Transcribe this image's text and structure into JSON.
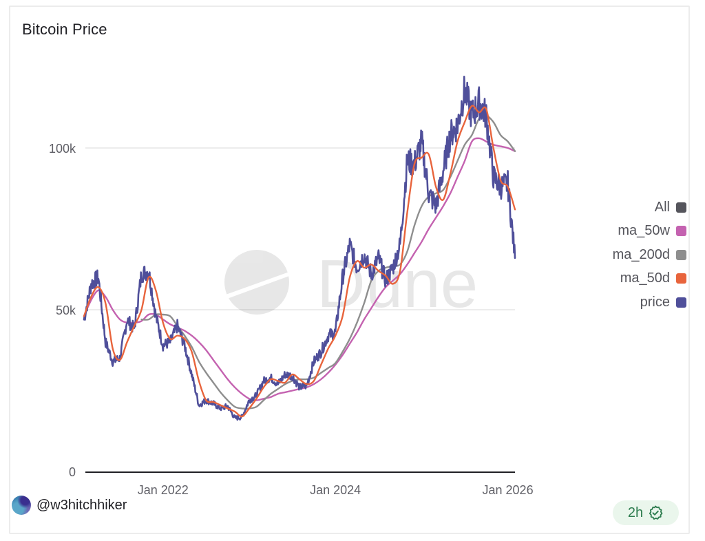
{
  "card": {
    "title": "Bitcoin Price"
  },
  "legend": {
    "items": [
      {
        "label": "All",
        "color": "#55555c"
      },
      {
        "label": "ma_50w",
        "color": "#c462b0"
      },
      {
        "label": "ma_200d",
        "color": "#8e8e8e"
      },
      {
        "label": "ma_50d",
        "color": "#e8643c"
      },
      {
        "label": "price",
        "color": "#4f4f9a"
      }
    ]
  },
  "watermark": {
    "text": "Dune",
    "icon": "dune-logo-icon"
  },
  "footer": {
    "author": "@w3hitchhiker",
    "refresh_badge": "2h",
    "badge_icon": "verified-check-icon",
    "badge_color": "#2e7d4f"
  },
  "chart_data": {
    "type": "line",
    "title": "Bitcoin Price",
    "xlabel": "",
    "ylabel": "",
    "x_ticks": [
      "Jan 2022",
      "Jan 2024",
      "Jan 2026"
    ],
    "y_ticks": [
      "0",
      "50k",
      "100k"
    ],
    "y_tick_values": [
      0,
      50000,
      100000
    ],
    "ylim": [
      0,
      128000
    ],
    "xlim": [
      "2021-02",
      "2026-02"
    ],
    "grid": true,
    "legend_position": "right",
    "x": [
      "2021-02",
      "2021-03",
      "2021-04",
      "2021-05",
      "2021-06",
      "2021-07",
      "2021-08",
      "2021-09",
      "2021-10",
      "2021-11",
      "2021-12",
      "2022-01",
      "2022-02",
      "2022-03",
      "2022-04",
      "2022-05",
      "2022-06",
      "2022-07",
      "2022-08",
      "2022-09",
      "2022-10",
      "2022-11",
      "2022-12",
      "2023-01",
      "2023-02",
      "2023-03",
      "2023-04",
      "2023-05",
      "2023-06",
      "2023-07",
      "2023-08",
      "2023-09",
      "2023-10",
      "2023-11",
      "2023-12",
      "2024-01",
      "2024-02",
      "2024-03",
      "2024-04",
      "2024-05",
      "2024-06",
      "2024-07",
      "2024-08",
      "2024-09",
      "2024-10",
      "2024-11",
      "2024-12",
      "2025-01",
      "2025-02",
      "2025-03",
      "2025-04",
      "2025-05",
      "2025-06",
      "2025-07",
      "2025-08",
      "2025-09",
      "2025-10",
      "2025-11",
      "2025-12",
      "2026-01",
      "2026-02"
    ],
    "series": [
      {
        "name": "price",
        "color": "#4f4f9a",
        "values": [
          47000,
          58000,
          60000,
          40000,
          34000,
          35000,
          47000,
          44000,
          61000,
          62000,
          48000,
          39000,
          40000,
          45000,
          39000,
          30000,
          20500,
          22000,
          21000,
          19500,
          20200,
          16500,
          16800,
          22000,
          23500,
          28000,
          29000,
          27000,
          30000,
          29500,
          26000,
          26500,
          34000,
          37000,
          42000,
          43000,
          60000,
          70000,
          63000,
          67000,
          61000,
          66000,
          59000,
          63000,
          70000,
          96000,
          95000,
          102000,
          86000,
          82000,
          93000,
          104000,
          107000,
          118000,
          110000,
          114000,
          110000,
          91000,
          88000,
          89000,
          66000
        ]
      },
      {
        "name": "ma_50d",
        "color": "#e8643c",
        "values": [
          48000,
          54000,
          57000,
          52000,
          38000,
          34500,
          40000,
          45000,
          50000,
          60000,
          56000,
          46000,
          41000,
          42000,
          41000,
          37000,
          28000,
          22000,
          21500,
          20500,
          19500,
          18500,
          17000,
          19500,
          22500,
          26000,
          28500,
          28000,
          27500,
          30000,
          28500,
          27000,
          28000,
          33000,
          38000,
          42000,
          48000,
          60000,
          65000,
          63000,
          64000,
          62000,
          60500,
          58000,
          62000,
          80000,
          95000,
          97000,
          98000,
          88000,
          84000,
          92000,
          102000,
          108000,
          113000,
          111000,
          112000,
          100000,
          90000,
          88000,
          81000
        ]
      },
      {
        "name": "ma_200d",
        "color": "#8e8e8e",
        "values": [
          null,
          null,
          null,
          null,
          null,
          null,
          null,
          null,
          47000,
          47000,
          48500,
          48500,
          48000,
          45000,
          42000,
          38500,
          34000,
          30500,
          27500,
          24500,
          22000,
          20000,
          19500,
          19500,
          20000,
          22000,
          24000,
          25500,
          27000,
          28000,
          28500,
          28500,
          29000,
          30500,
          32000,
          33500,
          37000,
          41000,
          46000,
          52000,
          59000,
          62000,
          63000,
          63500,
          64000,
          68000,
          76000,
          82000,
          85000,
          86000,
          87000,
          91000,
          96000,
          101000,
          104000,
          109000,
          110000,
          108000,
          104000,
          102000,
          99000
        ]
      },
      {
        "name": "ma_50w",
        "color": "#c462b0",
        "values": [
          48000,
          53000,
          56000,
          54000,
          50000,
          47000,
          46000,
          46000,
          46500,
          48500,
          48500,
          47000,
          45500,
          44500,
          43500,
          42000,
          40000,
          37500,
          34500,
          31500,
          28500,
          26000,
          24000,
          22500,
          22000,
          22500,
          23000,
          24000,
          24500,
          25000,
          25500,
          26000,
          27000,
          28500,
          30500,
          33000,
          36000,
          39500,
          43000,
          47000,
          50500,
          54000,
          57000,
          59000,
          61000,
          64000,
          67500,
          71000,
          75000,
          78500,
          82000,
          86000,
          91000,
          96000,
          102000,
          103000,
          102000,
          101000,
          100500,
          100000,
          99000
        ]
      }
    ]
  }
}
